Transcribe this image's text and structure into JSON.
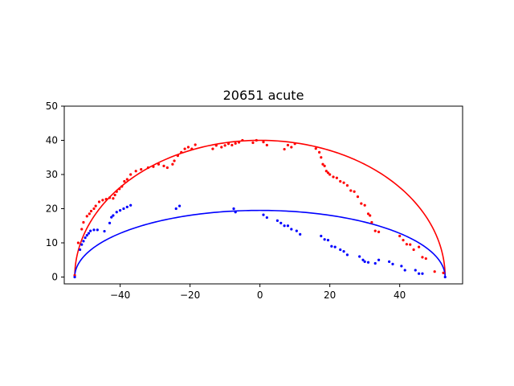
{
  "chart_data": {
    "type": "scatter",
    "title": "20651 acute",
    "xlabel": "",
    "ylabel": "",
    "xlim": [
      -56,
      58
    ],
    "ylim": [
      -2,
      50
    ],
    "xticks": [
      -40,
      -20,
      0,
      20,
      40
    ],
    "yticks": [
      0,
      10,
      20,
      30,
      40,
      50
    ],
    "grid": false,
    "series": [
      {
        "color": "#ff0000",
        "kind": "curve",
        "semi_ellipse": {
          "center_x": 0,
          "half_width": 53,
          "height": 40
        }
      },
      {
        "color": "#0000ff",
        "kind": "curve",
        "semi_ellipse": {
          "center_x": 0,
          "half_width": 53,
          "height": 19.5
        }
      },
      {
        "color": "#ff0000",
        "kind": "points",
        "points": [
          [
            -53,
            0.5
          ],
          [
            -52,
            10
          ],
          [
            -51,
            14
          ],
          [
            -50.5,
            16
          ],
          [
            -49.5,
            17.8
          ],
          [
            -48.8,
            18.5
          ],
          [
            -48.3,
            19.3
          ],
          [
            -47.5,
            20
          ],
          [
            -47,
            20.8
          ],
          [
            -46,
            22
          ],
          [
            -45,
            22.5
          ],
          [
            -44,
            22.8
          ],
          [
            -43,
            23.2
          ],
          [
            -42,
            23
          ],
          [
            -41.5,
            24
          ],
          [
            -41,
            25
          ],
          [
            -40.2,
            25.8
          ],
          [
            -39.5,
            26.5
          ],
          [
            -38.8,
            28
          ],
          [
            -38,
            28.6
          ],
          [
            -37,
            30
          ],
          [
            -35.5,
            31
          ],
          [
            -34,
            31.5
          ],
          [
            -32,
            32
          ],
          [
            -30.5,
            32.3
          ],
          [
            -29,
            33
          ],
          [
            -27.5,
            32.5
          ],
          [
            -26.5,
            32
          ],
          [
            -25,
            33
          ],
          [
            -24.5,
            34
          ],
          [
            -23.5,
            35.5
          ],
          [
            -22.5,
            36.5
          ],
          [
            -21.5,
            37.5
          ],
          [
            -20.5,
            38
          ],
          [
            -19.5,
            37.5
          ],
          [
            -18.5,
            38.7
          ],
          [
            -13.5,
            37.5
          ],
          [
            -12.5,
            38.5
          ],
          [
            -11,
            38
          ],
          [
            -10,
            38.5
          ],
          [
            -9,
            39
          ],
          [
            -8,
            38.6
          ],
          [
            -7,
            39.1
          ],
          [
            -6,
            39.4
          ],
          [
            -5,
            40
          ],
          [
            -2,
            39.3
          ],
          [
            -1,
            40
          ],
          [
            1,
            39.5
          ],
          [
            2,
            38.6
          ],
          [
            7,
            37.4
          ],
          [
            8,
            38.6
          ],
          [
            9,
            38
          ],
          [
            10,
            39
          ],
          [
            16,
            37.6
          ],
          [
            17,
            36.5
          ],
          [
            17.5,
            35
          ],
          [
            18,
            33
          ],
          [
            18.5,
            32.5
          ],
          [
            19,
            31
          ],
          [
            19.5,
            30.5
          ],
          [
            20,
            30
          ],
          [
            21,
            29.3
          ],
          [
            22,
            29
          ],
          [
            23,
            28
          ],
          [
            24,
            27.6
          ],
          [
            25,
            26.8
          ],
          [
            26,
            25.3
          ],
          [
            27,
            25
          ],
          [
            28,
            23.5
          ],
          [
            29,
            21.5
          ],
          [
            30,
            21
          ],
          [
            31,
            18.5
          ],
          [
            31.5,
            18
          ],
          [
            32,
            16
          ],
          [
            33,
            13.5
          ],
          [
            34,
            13.2
          ],
          [
            40,
            12
          ],
          [
            41,
            10.8
          ],
          [
            42,
            9.6
          ],
          [
            43,
            9.5
          ],
          [
            44,
            8
          ],
          [
            45.5,
            8.8
          ],
          [
            46.5,
            5.8
          ],
          [
            47.5,
            5.4
          ],
          [
            50,
            1.6
          ],
          [
            52.5,
            1.2
          ]
        ]
      },
      {
        "color": "#0000ff",
        "kind": "points",
        "points": [
          [
            -53,
            0
          ],
          [
            -51.5,
            8
          ],
          [
            -51,
            9.5
          ],
          [
            -50.5,
            10.5
          ],
          [
            -50,
            11.5
          ],
          [
            -49.5,
            12.2
          ],
          [
            -49,
            12.8
          ],
          [
            -48.5,
            13.5
          ],
          [
            -47.5,
            13.8
          ],
          [
            -46.5,
            13.8
          ],
          [
            -44.5,
            13.4
          ],
          [
            -43,
            15.8
          ],
          [
            -42.5,
            17.5
          ],
          [
            -42,
            18
          ],
          [
            -41,
            19
          ],
          [
            -40,
            19.5
          ],
          [
            -39,
            20
          ],
          [
            -38,
            20.5
          ],
          [
            -37,
            21
          ],
          [
            -24,
            20
          ],
          [
            -23,
            20.8
          ],
          [
            -7.5,
            20
          ],
          [
            -7,
            19
          ],
          [
            1,
            18.2
          ],
          [
            2,
            17.4
          ],
          [
            5,
            16.5
          ],
          [
            6,
            15.8
          ],
          [
            7,
            15
          ],
          [
            8,
            15
          ],
          [
            9,
            14
          ],
          [
            10.5,
            13.5
          ],
          [
            11.5,
            12.5
          ],
          [
            17.5,
            12
          ],
          [
            18.5,
            11
          ],
          [
            19.5,
            10.8
          ],
          [
            20.5,
            9
          ],
          [
            21.5,
            8.8
          ],
          [
            23,
            8
          ],
          [
            24,
            7.5
          ],
          [
            25,
            6.5
          ],
          [
            28.5,
            6
          ],
          [
            29.5,
            5
          ],
          [
            30,
            4.5
          ],
          [
            31,
            4.3
          ],
          [
            33,
            4
          ],
          [
            34,
            5
          ],
          [
            37,
            4.5
          ],
          [
            38,
            3.8
          ],
          [
            40.5,
            3.2
          ],
          [
            41.5,
            2
          ],
          [
            44.5,
            2
          ],
          [
            45.5,
            1
          ],
          [
            46.5,
            1
          ],
          [
            53,
            0
          ]
        ]
      }
    ]
  }
}
